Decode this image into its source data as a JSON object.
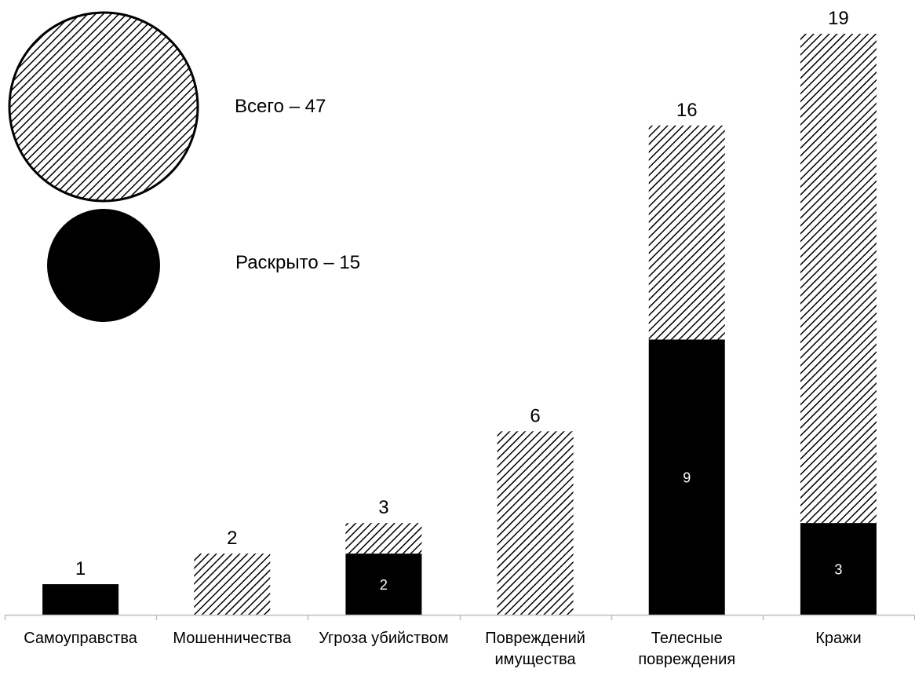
{
  "chart_data": {
    "type": "bar",
    "stacked": false,
    "categories": [
      [
        "Самоуправства"
      ],
      [
        "Мошенничества"
      ],
      [
        "Угроза убийством"
      ],
      [
        "Повреждений",
        "имущества"
      ],
      [
        "Телесные",
        "повреждения"
      ],
      [
        "Кражи"
      ]
    ],
    "series": [
      {
        "name": "Всего",
        "values": [
          1,
          2,
          3,
          6,
          16,
          19
        ],
        "fill": "hatch"
      },
      {
        "name": "Раскрыто",
        "values": [
          1,
          0,
          2,
          0,
          9,
          3
        ],
        "fill": "#000000"
      }
    ],
    "total_labels": [
      "1",
      "2",
      "3",
      "6",
      "16",
      "19"
    ],
    "solved_labels": [
      "",
      "",
      "2",
      "",
      "9",
      "3"
    ],
    "ylim": [
      0,
      19
    ],
    "grid": false,
    "legend": {
      "placement": "top-left",
      "items": [
        {
          "text": "Всего – 47",
          "marker": "hatch-circle"
        },
        {
          "text": "Раскрыто – 15",
          "marker": "solid-circle"
        }
      ]
    }
  }
}
